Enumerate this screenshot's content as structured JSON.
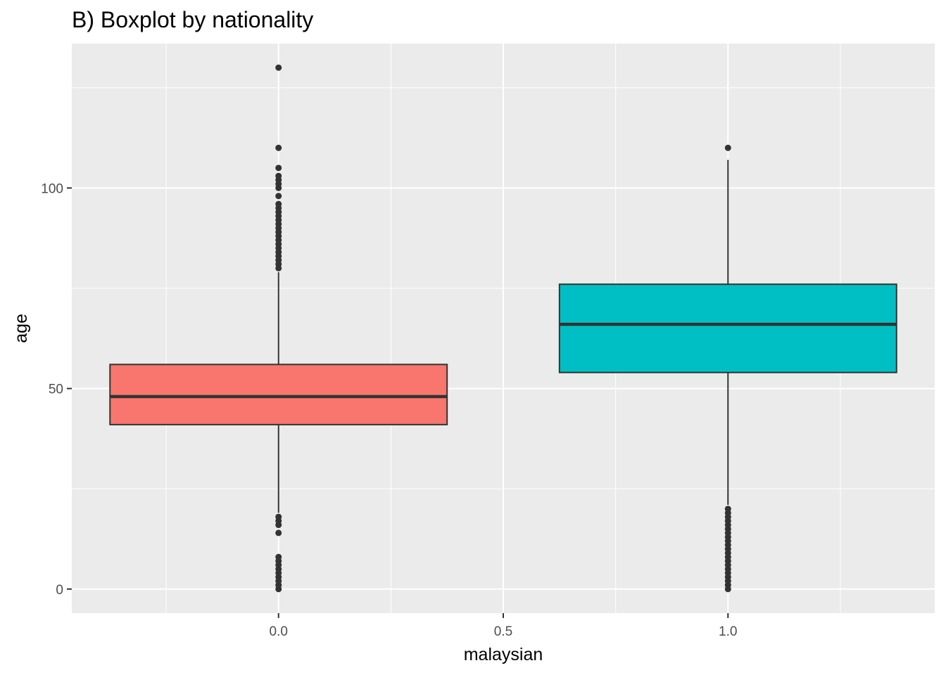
{
  "chart_data": {
    "type": "boxplot",
    "title": "B) Boxplot by nationality",
    "xlabel": "malaysian",
    "ylabel": "age",
    "x_ticks": [
      "0.0",
      "0.5",
      "1.0"
    ],
    "y_ticks": [
      "0",
      "50",
      "100"
    ],
    "xlim": [
      -0.46,
      1.46
    ],
    "ylim": [
      -6,
      136
    ],
    "grid": true,
    "legend": "none",
    "panel_background": "#EBEBEB",
    "boxes": [
      {
        "x": 0,
        "fill": "#F8766D",
        "q1": 41,
        "median": 48,
        "q3": 56,
        "whisker_low": 19,
        "whisker_high": 79,
        "outliers": [
          0,
          1,
          2,
          3,
          4,
          5,
          6,
          7,
          8,
          14,
          16,
          17,
          18,
          80,
          81,
          82,
          83,
          84,
          85,
          86,
          87,
          88,
          89,
          90,
          91,
          92,
          93,
          94,
          95,
          96,
          98,
          100,
          101,
          102,
          103,
          105,
          110,
          130
        ]
      },
      {
        "x": 1,
        "fill": "#00BFC4",
        "q1": 54,
        "median": 66,
        "q3": 76,
        "whisker_low": 21,
        "whisker_high": 107,
        "outliers": [
          0,
          1,
          2,
          3,
          4,
          5,
          6,
          7,
          8,
          9,
          10,
          11,
          12,
          13,
          14,
          15,
          16,
          17,
          18,
          19,
          20,
          110
        ]
      }
    ]
  }
}
